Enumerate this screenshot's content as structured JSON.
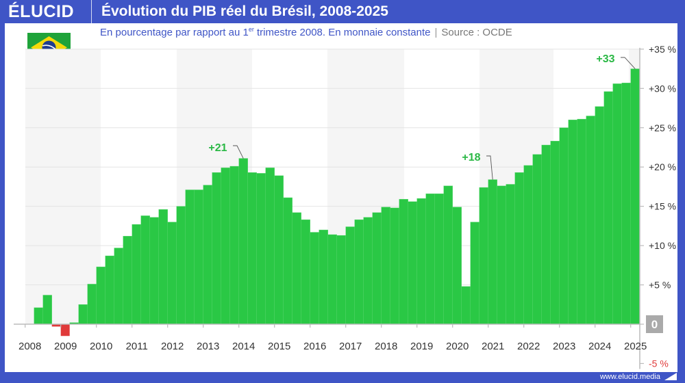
{
  "header": {
    "logo": "ÉLUCID",
    "title": "Évolution du PIB réel du Brésil, 2008-2025"
  },
  "subtitle": {
    "main_before": "En pourcentage par rapport au 1",
    "sup": "er",
    "main_after": " trimestre 2008. En monnaie constante",
    "separator": "|",
    "source": "Source : OCDE"
  },
  "flag": {
    "country": "Brazil",
    "icon": "brazil-flag-icon"
  },
  "footer": {
    "url": "www.elucid.media"
  },
  "colors": {
    "brand": "#3f55c6",
    "positive": "#2ac845",
    "negative": "#e03a3a",
    "annotation": "#2ab845"
  },
  "chart_data": {
    "type": "bar",
    "title": "Évolution du PIB réel du Brésil, 2008-2025",
    "frequency": "quarterly",
    "start": "2008-Q1",
    "end": "2025-Q1",
    "ylim": [
      -5,
      35
    ],
    "yticks": [
      {
        "value": 35,
        "label": "+35 %"
      },
      {
        "value": 30,
        "label": "+30 %"
      },
      {
        "value": 25,
        "label": "+25 %"
      },
      {
        "value": 20,
        "label": "+20 %"
      },
      {
        "value": 15,
        "label": "+15 %"
      },
      {
        "value": 10,
        "label": "+10 %"
      },
      {
        "value": 5,
        "label": "+5 %"
      },
      {
        "value": 0,
        "label": "0"
      },
      {
        "value": -5,
        "label": "-5 %"
      }
    ],
    "xticks": [
      "2008",
      "2009",
      "2010",
      "2011",
      "2012",
      "2013",
      "2014",
      "2015",
      "2016",
      "2017",
      "2018",
      "2019",
      "2020",
      "2021",
      "2022",
      "2023",
      "2024",
      "2025"
    ],
    "grid": true,
    "y_axis_side": "right",
    "values": [
      0,
      2.1,
      3.7,
      -0.3,
      -1.5,
      0.2,
      2.5,
      5.1,
      7.3,
      8.7,
      9.7,
      11.2,
      12.7,
      13.8,
      13.6,
      14.6,
      13.0,
      15.0,
      17.1,
      17.1,
      17.7,
      19.3,
      19.9,
      20.1,
      21.1,
      19.3,
      19.2,
      19.9,
      18.9,
      16.1,
      14.2,
      13.3,
      11.7,
      12.0,
      11.4,
      11.3,
      12.4,
      13.3,
      13.6,
      14.2,
      14.9,
      14.8,
      15.9,
      15.6,
      16.0,
      16.6,
      16.6,
      17.6,
      14.9,
      4.8,
      13.0,
      17.4,
      18.4,
      17.6,
      17.8,
      19.3,
      20.2,
      21.6,
      22.8,
      23.3,
      25.0,
      26.0,
      26.1,
      26.5,
      27.7,
      29.6,
      30.6,
      30.7,
      32.5
    ],
    "annotations": [
      {
        "label": "+21",
        "period": "2014-Q1"
      },
      {
        "label": "+18",
        "period": "2021-Q1"
      },
      {
        "label": "+33",
        "period": "2025-Q1"
      }
    ]
  }
}
